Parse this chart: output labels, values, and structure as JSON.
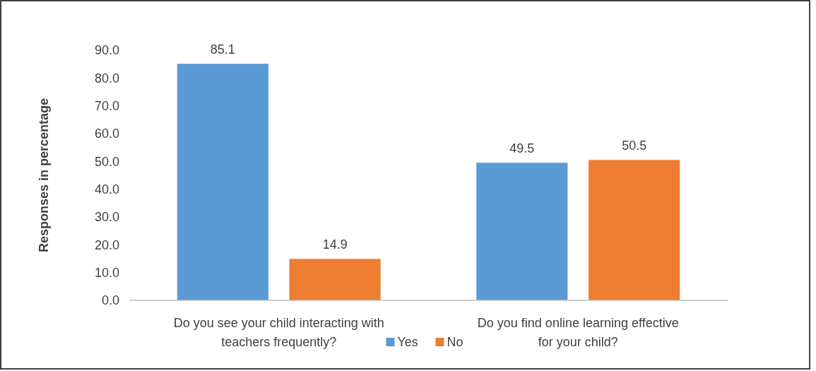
{
  "chart_data": {
    "type": "bar",
    "ylabel": "Responses  in percentage",
    "categories": [
      "Do you see your child interacting with teachers frequently?",
      "Do you find online learning effective for your child?"
    ],
    "series": [
      {
        "name": "Yes",
        "color": "#5b9bd5",
        "values": [
          85.1,
          49.5
        ]
      },
      {
        "name": "No",
        "color": "#ed7d31",
        "values": [
          14.9,
          50.5
        ]
      }
    ],
    "ylim": [
      0,
      90
    ],
    "yticks": [
      {
        "value": 0,
        "label": "0.0"
      },
      {
        "value": 10,
        "label": "10.0"
      },
      {
        "value": 20,
        "label": "20.0"
      },
      {
        "value": 30,
        "label": "30.0"
      },
      {
        "value": 40,
        "label": "40.0"
      },
      {
        "value": 50,
        "label": "50.0"
      },
      {
        "value": 60,
        "label": "60.0"
      },
      {
        "value": 70,
        "label": "70.0"
      },
      {
        "value": 80,
        "label": "80.0"
      },
      {
        "value": 90,
        "label": "90.0"
      }
    ],
    "data_labels": true,
    "grid": false,
    "legend": "bottom"
  }
}
